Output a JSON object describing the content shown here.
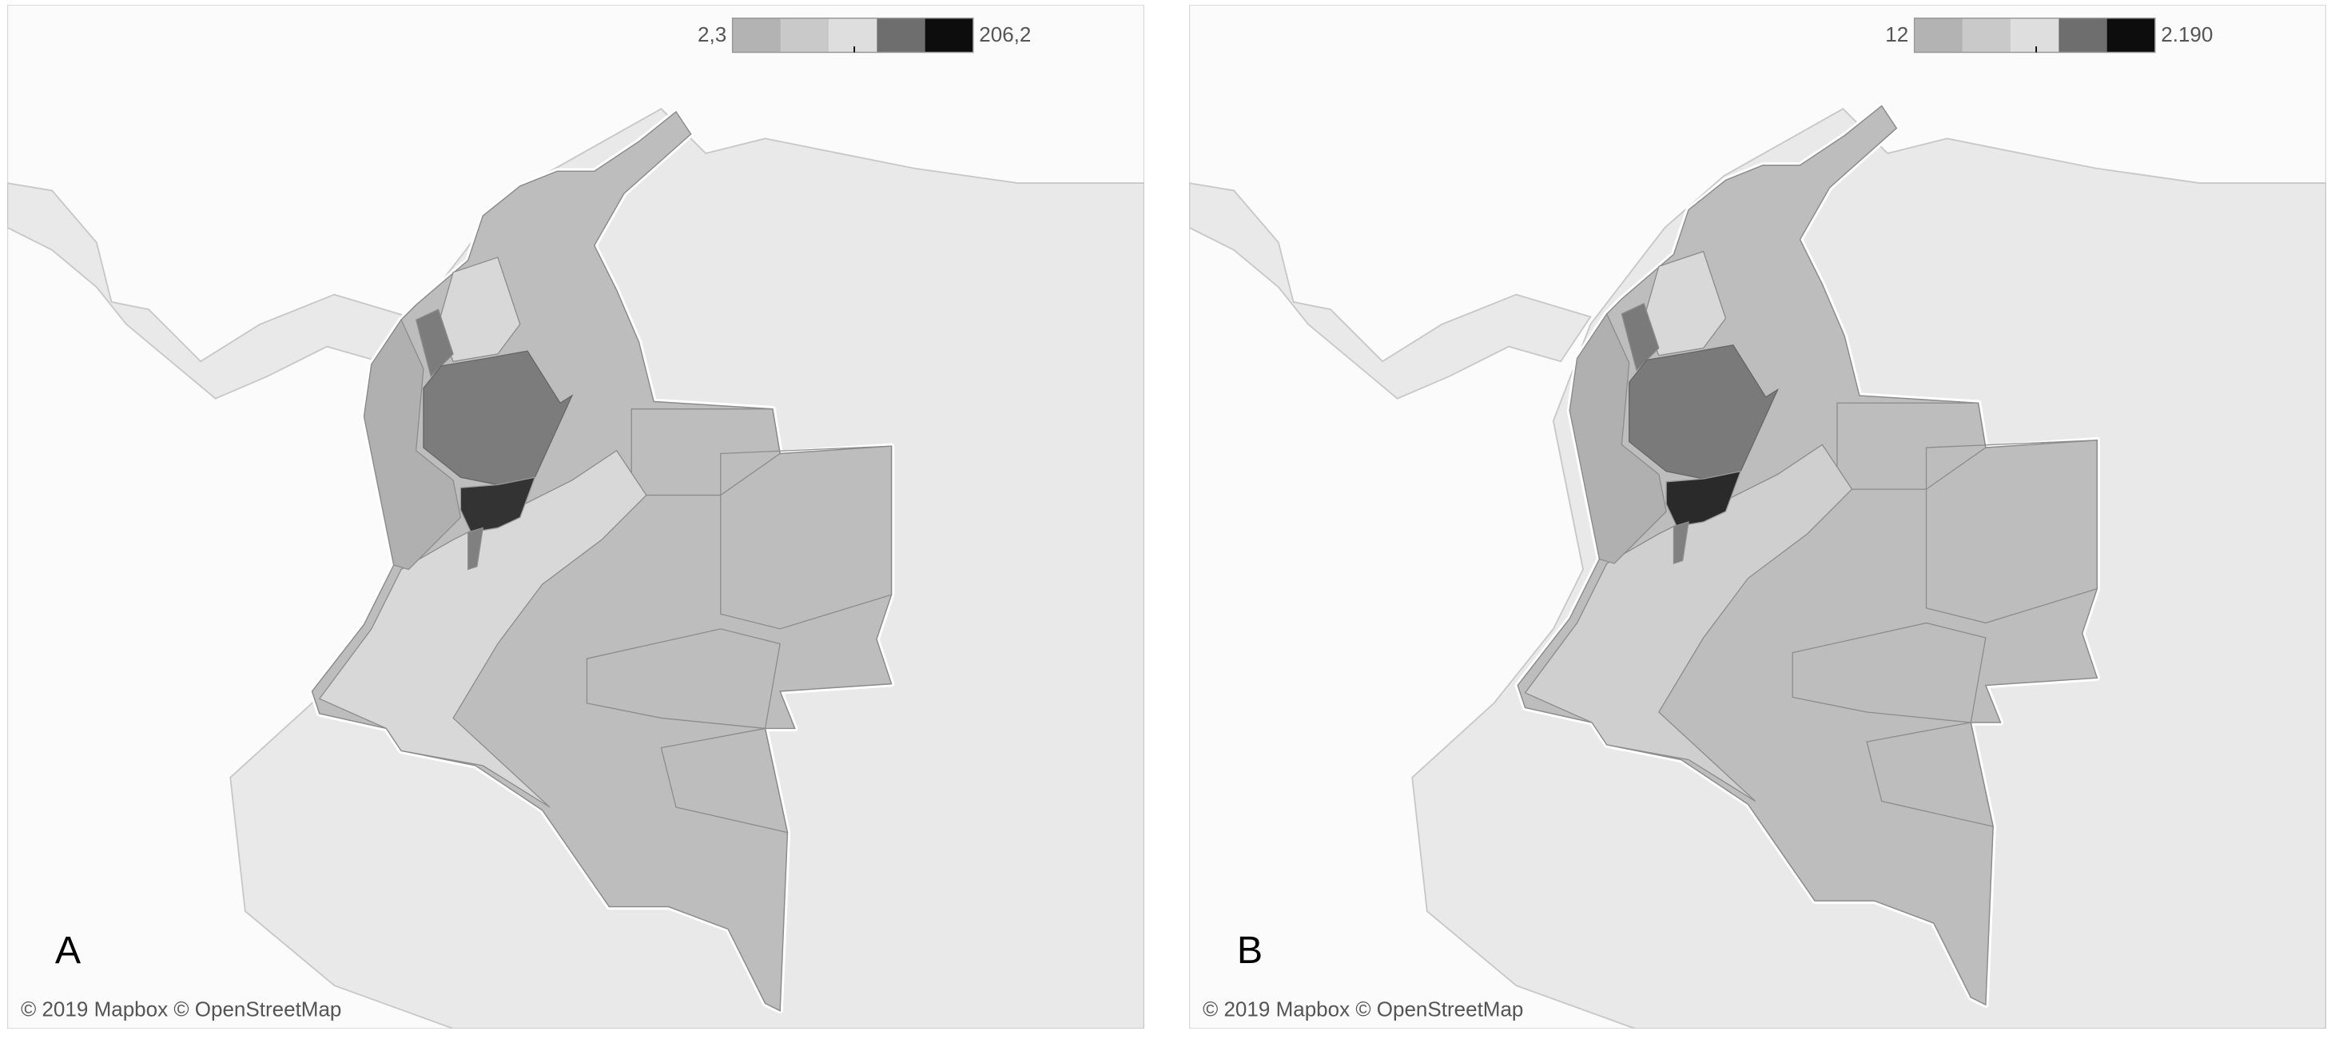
{
  "panels": [
    {
      "label": "A",
      "legend": {
        "min": "2,3",
        "max": "206,2"
      },
      "attribution": "© 2019 Mapbox © OpenStreetMap"
    },
    {
      "label": "B",
      "legend": {
        "min": "12",
        "max": "2.190"
      },
      "attribution": "© 2019 Mapbox © OpenStreetMap"
    }
  ]
}
